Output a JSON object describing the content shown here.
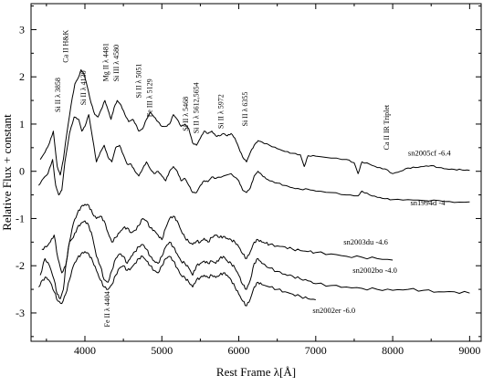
{
  "chart_data": {
    "type": "line",
    "title": "",
    "xlabel": "Rest Frame λ[Å]",
    "ylabel": "Relative Flux + constant",
    "xlim": [
      3300,
      9150
    ],
    "ylim": [
      -3.6,
      3.55
    ],
    "x_ticks": [
      4000,
      5000,
      6000,
      7000,
      8000,
      9000
    ],
    "y_ticks": [
      -3,
      -2,
      -1,
      0,
      1,
      2,
      3
    ],
    "grid": false,
    "legend": "none",
    "series": [
      {
        "name": "sn2005cf -6.4",
        "color": "#000000",
        "x": [
          3420,
          3480,
          3540,
          3590,
          3640,
          3680,
          3720,
          3760,
          3820,
          3870,
          3920,
          3950,
          3990,
          4030,
          4080,
          4130,
          4170,
          4210,
          4260,
          4300,
          4340,
          4380,
          4420,
          4470,
          4520,
          4570,
          4620,
          4660,
          4700,
          4750,
          4800,
          4850,
          4900,
          4950,
          5000,
          5050,
          5100,
          5150,
          5200,
          5250,
          5300,
          5350,
          5400,
          5450,
          5500,
          5550,
          5600,
          5650,
          5700,
          5750,
          5800,
          5850,
          5900,
          5950,
          6000,
          6050,
          6100,
          6150,
          6200,
          6250,
          6300,
          6400,
          6500,
          6600,
          6700,
          6800,
          6850,
          6900,
          7000,
          7200,
          7400,
          7500,
          7550,
          7600,
          7700,
          7800,
          7900,
          8000,
          8100,
          8200,
          8300,
          8400,
          8500,
          8600,
          8700,
          8800,
          8900,
          9000
        ],
        "y": [
          0.25,
          0.4,
          0.6,
          0.85,
          0.1,
          -0.08,
          0.25,
          0.75,
          1.4,
          1.85,
          2.0,
          2.15,
          2.05,
          1.8,
          1.45,
          1.2,
          1.15,
          1.3,
          1.5,
          1.3,
          1.1,
          1.35,
          1.5,
          1.4,
          1.2,
          1.05,
          1.1,
          1.0,
          0.85,
          0.9,
          1.1,
          1.25,
          1.15,
          1.05,
          0.95,
          0.95,
          1.0,
          1.2,
          1.1,
          0.95,
          1.0,
          0.9,
          0.6,
          0.55,
          0.7,
          0.85,
          0.8,
          0.85,
          0.75,
          0.75,
          0.8,
          0.75,
          0.8,
          0.7,
          0.5,
          0.3,
          0.2,
          0.4,
          0.55,
          0.65,
          0.62,
          0.55,
          0.48,
          0.42,
          0.38,
          0.35,
          0.1,
          0.33,
          0.32,
          0.28,
          0.25,
          0.18,
          -0.05,
          0.2,
          0.15,
          0.08,
          0.05,
          -0.05,
          0.0,
          0.07,
          0.08,
          0.1,
          0.12,
          0.08,
          0.05,
          0.04,
          0.03,
          0.02
        ]
      },
      {
        "name": "sn1994d -4",
        "color": "#000000",
        "x": [
          3400,
          3460,
          3520,
          3580,
          3620,
          3660,
          3700,
          3740,
          3800,
          3860,
          3920,
          3960,
          4000,
          4050,
          4100,
          4150,
          4200,
          4250,
          4300,
          4350,
          4400,
          4450,
          4500,
          4550,
          4600,
          4650,
          4700,
          4750,
          4800,
          4850,
          4900,
          4950,
          5000,
          5050,
          5100,
          5150,
          5200,
          5250,
          5300,
          5350,
          5400,
          5450,
          5500,
          5550,
          5600,
          5650,
          5700,
          5800,
          5900,
          6000,
          6050,
          6100,
          6150,
          6200,
          6250,
          6300,
          6350,
          6400,
          6500,
          6600,
          6700,
          6800,
          6900,
          7000,
          7200,
          7400,
          7550,
          7600,
          7700,
          7800,
          7900,
          8000,
          8200,
          8400,
          8600,
          8800,
          9000
        ],
        "y": [
          -0.3,
          -0.15,
          -0.05,
          0.25,
          -0.3,
          -0.5,
          -0.4,
          0.2,
          0.8,
          1.15,
          1.1,
          0.85,
          0.95,
          1.2,
          0.7,
          0.2,
          0.4,
          0.55,
          0.3,
          0.2,
          0.5,
          0.55,
          0.35,
          0.15,
          0.15,
          0.0,
          -0.1,
          0.05,
          0.2,
          0.05,
          -0.05,
          0.0,
          -0.1,
          -0.2,
          0.0,
          0.1,
          0.0,
          -0.2,
          -0.15,
          -0.3,
          -0.45,
          -0.45,
          -0.3,
          -0.2,
          -0.22,
          -0.12,
          -0.15,
          -0.1,
          -0.05,
          -0.2,
          -0.4,
          -0.45,
          -0.35,
          -0.1,
          0.0,
          -0.08,
          -0.15,
          -0.2,
          -0.25,
          -0.3,
          -0.35,
          -0.38,
          -0.38,
          -0.42,
          -0.45,
          -0.5,
          -0.52,
          -0.42,
          -0.5,
          -0.55,
          -0.58,
          -0.6,
          -0.6,
          -0.62,
          -0.62,
          -0.66,
          -0.65
        ]
      },
      {
        "name": "sn2003du -4.6",
        "color": "#000000",
        "x": [
          3440,
          3500,
          3550,
          3600,
          3650,
          3700,
          3750,
          3800,
          3850,
          3900,
          3950,
          4000,
          4050,
          4100,
          4150,
          4200,
          4250,
          4300,
          4350,
          4400,
          4450,
          4500,
          4550,
          4600,
          4650,
          4700,
          4750,
          4800,
          4850,
          4900,
          4950,
          5000,
          5050,
          5100,
          5150,
          5200,
          5250,
          5300,
          5350,
          5400,
          5450,
          5500,
          5550,
          5600,
          5650,
          5700,
          5750,
          5800,
          5850,
          5900,
          5950,
          6000,
          6050,
          6100,
          6150,
          6200,
          6250,
          6300,
          6350,
          6400,
          6500,
          6600,
          6700,
          6800,
          6900,
          7000,
          7200,
          7400,
          7600,
          7800,
          8000
        ],
        "y": [
          -1.65,
          -1.6,
          -1.5,
          -1.35,
          -1.85,
          -2.15,
          -2.0,
          -1.5,
          -1.1,
          -0.9,
          -0.75,
          -0.7,
          -0.72,
          -0.9,
          -1.0,
          -0.95,
          -1.05,
          -1.3,
          -1.5,
          -1.4,
          -1.3,
          -1.2,
          -1.2,
          -1.3,
          -1.25,
          -1.15,
          -1.0,
          -1.05,
          -1.2,
          -1.25,
          -1.35,
          -1.45,
          -1.2,
          -1.0,
          -0.95,
          -1.05,
          -1.25,
          -1.4,
          -1.5,
          -1.55,
          -1.48,
          -1.5,
          -1.42,
          -1.5,
          -1.4,
          -1.35,
          -1.4,
          -1.38,
          -1.42,
          -1.45,
          -1.5,
          -1.6,
          -1.75,
          -1.85,
          -1.7,
          -1.5,
          -1.45,
          -1.5,
          -1.52,
          -1.55,
          -1.58,
          -1.6,
          -1.65,
          -1.68,
          -1.7,
          -1.72,
          -1.75,
          -1.8,
          -1.82,
          -1.85,
          -1.88
        ]
      },
      {
        "name": "sn2002bo -4.0",
        "color": "#000000",
        "x": [
          3420,
          3480,
          3540,
          3600,
          3640,
          3680,
          3720,
          3760,
          3800,
          3850,
          3900,
          3950,
          4000,
          4050,
          4100,
          4150,
          4200,
          4250,
          4300,
          4350,
          4400,
          4450,
          4500,
          4550,
          4600,
          4650,
          4700,
          4750,
          4800,
          4850,
          4900,
          4950,
          5000,
          5050,
          5100,
          5150,
          5200,
          5250,
          5300,
          5350,
          5400,
          5450,
          5500,
          5550,
          5600,
          5650,
          5700,
          5750,
          5800,
          5850,
          5900,
          5950,
          6000,
          6050,
          6100,
          6150,
          6200,
          6250,
          6300,
          6400,
          6500,
          6600,
          6700,
          6800,
          6900,
          7000,
          7200,
          7400,
          7600,
          7800,
          8000,
          8200,
          8400,
          8600,
          8800,
          9000
        ],
        "y": [
          -2.2,
          -1.85,
          -2.0,
          -2.3,
          -2.6,
          -2.7,
          -2.5,
          -1.9,
          -1.5,
          -1.4,
          -1.2,
          -1.1,
          -1.05,
          -1.15,
          -1.4,
          -1.8,
          -2.0,
          -2.3,
          -2.35,
          -2.1,
          -1.85,
          -1.75,
          -1.8,
          -1.95,
          -1.8,
          -1.7,
          -1.6,
          -1.55,
          -1.65,
          -1.8,
          -1.9,
          -1.95,
          -1.8,
          -1.6,
          -1.5,
          -1.6,
          -1.75,
          -1.9,
          -1.95,
          -2.05,
          -2.2,
          -2.0,
          -1.95,
          -1.9,
          -1.95,
          -1.9,
          -1.95,
          -1.85,
          -1.8,
          -1.9,
          -1.95,
          -2.05,
          -2.2,
          -2.4,
          -2.5,
          -2.3,
          -1.95,
          -1.85,
          -1.95,
          -2.05,
          -2.12,
          -2.18,
          -2.22,
          -2.28,
          -2.32,
          -2.38,
          -2.42,
          -2.45,
          -2.48,
          -2.5,
          -2.52,
          -2.5,
          -2.52,
          -2.55,
          -2.55,
          -2.58
        ]
      },
      {
        "name": "sn2002er -6.0",
        "color": "#000000",
        "x": [
          3400,
          3450,
          3500,
          3550,
          3600,
          3650,
          3700,
          3750,
          3800,
          3850,
          3900,
          3950,
          4000,
          4050,
          4100,
          4150,
          4200,
          4250,
          4300,
          4350,
          4400,
          4450,
          4500,
          4550,
          4600,
          4650,
          4700,
          4750,
          4800,
          4850,
          4900,
          4950,
          5000,
          5050,
          5100,
          5150,
          5200,
          5250,
          5300,
          5350,
          5400,
          5450,
          5500,
          5550,
          5600,
          5650,
          5700,
          5750,
          5800,
          5850,
          5900,
          5950,
          6000,
          6050,
          6100,
          6150,
          6200,
          6250,
          6300,
          6400,
          6500,
          6600,
          6700,
          6800,
          6900,
          7000
        ],
        "y": [
          -2.45,
          -2.3,
          -2.25,
          -2.35,
          -2.55,
          -2.75,
          -2.8,
          -2.6,
          -2.3,
          -2.0,
          -1.85,
          -1.75,
          -1.7,
          -1.75,
          -1.9,
          -2.1,
          -2.3,
          -2.45,
          -2.5,
          -2.4,
          -2.2,
          -2.05,
          -2.0,
          -2.1,
          -2.05,
          -1.95,
          -1.85,
          -1.8,
          -1.9,
          -2.0,
          -2.1,
          -2.15,
          -2.0,
          -1.85,
          -1.8,
          -1.9,
          -2.05,
          -2.2,
          -2.25,
          -2.35,
          -2.45,
          -2.3,
          -2.25,
          -2.2,
          -2.25,
          -2.2,
          -2.25,
          -2.2,
          -2.15,
          -2.2,
          -2.3,
          -2.45,
          -2.6,
          -2.75,
          -2.85,
          -2.7,
          -2.45,
          -2.35,
          -2.4,
          -2.45,
          -2.5,
          -2.55,
          -2.6,
          -2.65,
          -2.7,
          -2.72
        ]
      }
    ],
    "series_labels": [
      {
        "text": "sn2005cf -6.4",
        "x": 8200,
        "y": 0.33
      },
      {
        "text": "sn1994d -4",
        "x": 8230,
        "y": -0.72
      },
      {
        "text": "sn2003du -4.6",
        "x": 7360,
        "y": -1.55
      },
      {
        "text": "sn2002bo -4.0",
        "x": 7480,
        "y": -2.15
      },
      {
        "text": "sn2002er -6.0",
        "x": 6960,
        "y": -3.0
      }
    ],
    "annotations": [
      {
        "text": "Si II λ 3858",
        "x": 3680,
        "y": 1.25
      },
      {
        "text": "Ca II H&K",
        "x": 3780,
        "y": 2.3
      },
      {
        "text": "Si II λ 4130",
        "x": 4010,
        "y": 1.4
      },
      {
        "text": "Mg II λ 4481",
        "x": 4300,
        "y": 1.9
      },
      {
        "text": "Si III λ 4580",
        "x": 4440,
        "y": 1.9
      },
      {
        "text": "Si II λ 5051",
        "x": 4730,
        "y": 1.55
      },
      {
        "text": "Fe III λ 5129",
        "x": 4870,
        "y": 1.15
      },
      {
        "text": "Si II λ 5468",
        "x": 5340,
        "y": 0.85
      },
      {
        "text": "Si II λ 5612,5654",
        "x": 5480,
        "y": 0.8
      },
      {
        "text": "Si II λ 5972",
        "x": 5800,
        "y": 0.9
      },
      {
        "text": "Si II λ 6355",
        "x": 6110,
        "y": 0.95
      },
      {
        "text": "Ca II IR Triplet",
        "x": 7950,
        "y": 0.45
      },
      {
        "text": "Fe II λ 4404",
        "x": 4320,
        "y": -3.3
      }
    ]
  }
}
